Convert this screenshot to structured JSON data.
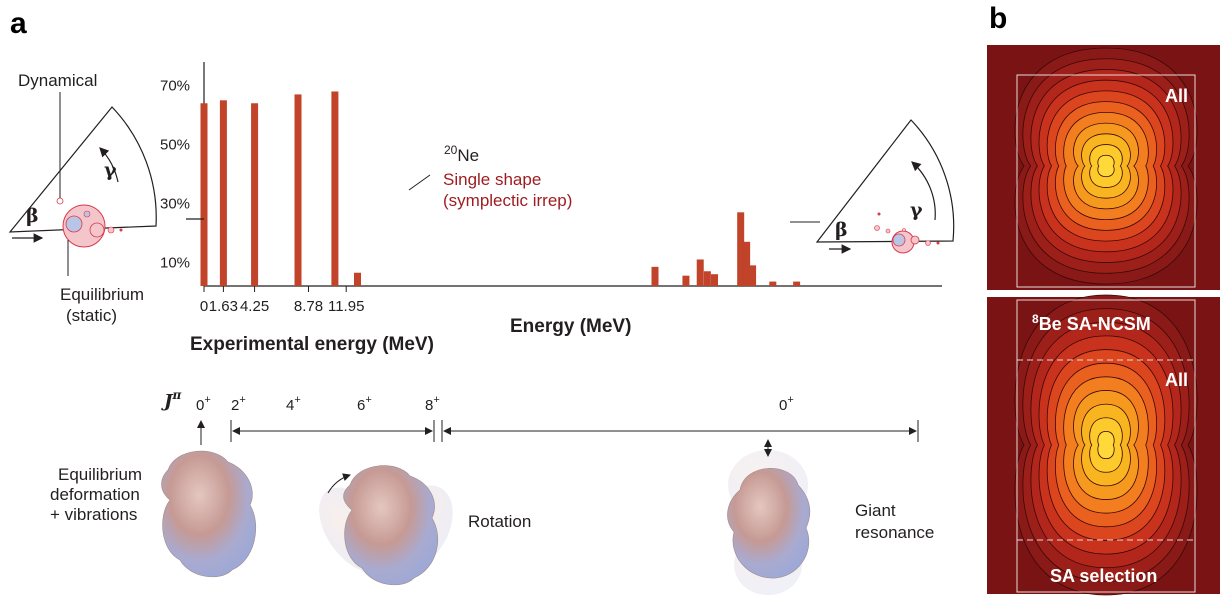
{
  "panel_a": {
    "letter": "a",
    "left_wedge": {
      "dynamical_label": "Dynamical",
      "equilibrium_label": "Equilibrium",
      "static_label": "(static)",
      "beta": "β",
      "gamma": "γ"
    },
    "right_wedge": {
      "beta": "β",
      "gamma": "γ"
    },
    "nucleus": "Ne",
    "nucleus_mass": "20",
    "single_shape_label": "Single shape",
    "symplectic_label": "(symplectic irrep)",
    "energy_label": "Energy (MeV)",
    "experimental_energy_label": "Experimental energy (MeV)",
    "jpi_label": "J",
    "jpi_sup": "π",
    "spins": [
      {
        "label": "0",
        "sup": "+"
      },
      {
        "label": "2",
        "sup": "+"
      },
      {
        "label": "4",
        "sup": "+"
      },
      {
        "label": "6",
        "sup": "+"
      },
      {
        "label": "8",
        "sup": "+"
      },
      {
        "label": "0",
        "sup": "+"
      }
    ],
    "shape_labels": {
      "equilibrium_1": "Equilibrium",
      "equilibrium_2": "deformation",
      "equilibrium_3": "+ vibrations",
      "rotation": "Rotation",
      "giant_1": "Giant",
      "giant_2": "resonance"
    }
  },
  "panel_b": {
    "letter": "b",
    "top_label": "All",
    "bottom_title_sup": "8",
    "bottom_title": "Be SA-NCSM",
    "bottom_inner_label": "All",
    "bottom_selection_label": "SA selection"
  },
  "chart_data": {
    "type": "bar",
    "yticks": [
      "10%",
      "30%",
      "50%",
      "70%"
    ],
    "ytick_values": [
      10,
      30,
      50,
      70
    ],
    "xticks": [
      "0",
      "1.63",
      "4.25",
      "8.78",
      "11.95"
    ],
    "xtick_values": [
      0,
      1.63,
      4.25,
      8.78,
      11.95
    ],
    "ylim": [
      2,
      78
    ],
    "bars": [
      {
        "x": 0.0,
        "y": 64
      },
      {
        "x": 1.63,
        "y": 65
      },
      {
        "x": 4.25,
        "y": 64
      },
      {
        "x": 7.9,
        "y": 67
      },
      {
        "x": 11.0,
        "y": 68
      },
      {
        "x": 12.9,
        "y": 6.5
      },
      {
        "x": 37.9,
        "y": 8.5
      },
      {
        "x": 40.5,
        "y": 5.5
      },
      {
        "x": 41.7,
        "y": 11
      },
      {
        "x": 42.3,
        "y": 7
      },
      {
        "x": 42.9,
        "y": 6
      },
      {
        "x": 45.1,
        "y": 27
      },
      {
        "x": 45.6,
        "y": 17
      },
      {
        "x": 46.1,
        "y": 9
      },
      {
        "x": 47.8,
        "y": 3.5
      },
      {
        "x": 49.8,
        "y": 3.5
      }
    ]
  },
  "colors": {
    "bar": "#c0432a",
    "dark_red": "#9e1b1f",
    "heatmap_bg": "#7a1414"
  }
}
